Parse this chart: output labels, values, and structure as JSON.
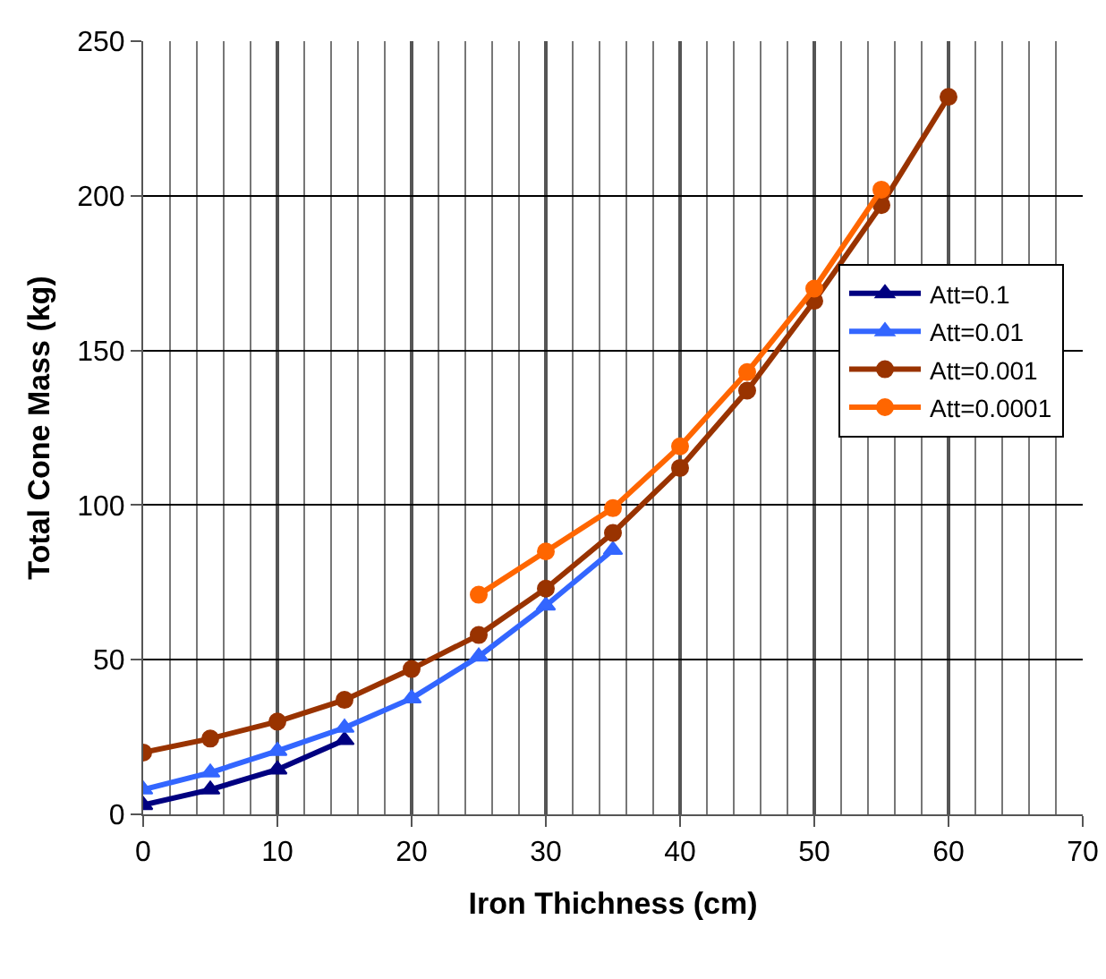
{
  "chart_data": {
    "type": "line",
    "xlabel": "Iron Thichness (cm)",
    "ylabel": "Total Cone Mass (kg)",
    "xlim": [
      0,
      70
    ],
    "xticks": [
      0,
      10,
      20,
      30,
      40,
      50,
      60,
      70
    ],
    "ylim": [
      0,
      250
    ],
    "yticks": [
      0,
      50,
      100,
      150,
      200,
      250
    ],
    "grid": true,
    "legend": "right",
    "line_style": "solid",
    "series": [
      {
        "name": "Att=0.1",
        "color": "#000080",
        "marker": "triangle",
        "x": [
          0,
          5,
          10,
          15
        ],
        "values": [
          3,
          8,
          14.5,
          24
        ]
      },
      {
        "name": "Att=0.01",
        "color": "#3366ff",
        "marker": "triangle",
        "x": [
          0,
          5,
          10,
          15,
          20,
          25,
          30,
          35
        ],
        "values": [
          8,
          13.5,
          20.5,
          28,
          37.5,
          51,
          67.5,
          85.5
        ]
      },
      {
        "name": "Att=0.001",
        "color": "#993300",
        "marker": "circle",
        "x": [
          0,
          5,
          10,
          15,
          20,
          25,
          30,
          35,
          40,
          45,
          50,
          55,
          60
        ],
        "values": [
          20,
          24.5,
          30,
          37,
          47,
          58,
          73,
          91,
          112,
          137,
          166,
          197,
          232
        ]
      },
      {
        "name": "Att=0.0001",
        "color": "#ff6600",
        "marker": "circle",
        "x": [
          25,
          30,
          35,
          40,
          45,
          50,
          55
        ],
        "values": [
          71,
          85,
          99,
          119,
          143,
          170,
          202
        ]
      }
    ]
  }
}
